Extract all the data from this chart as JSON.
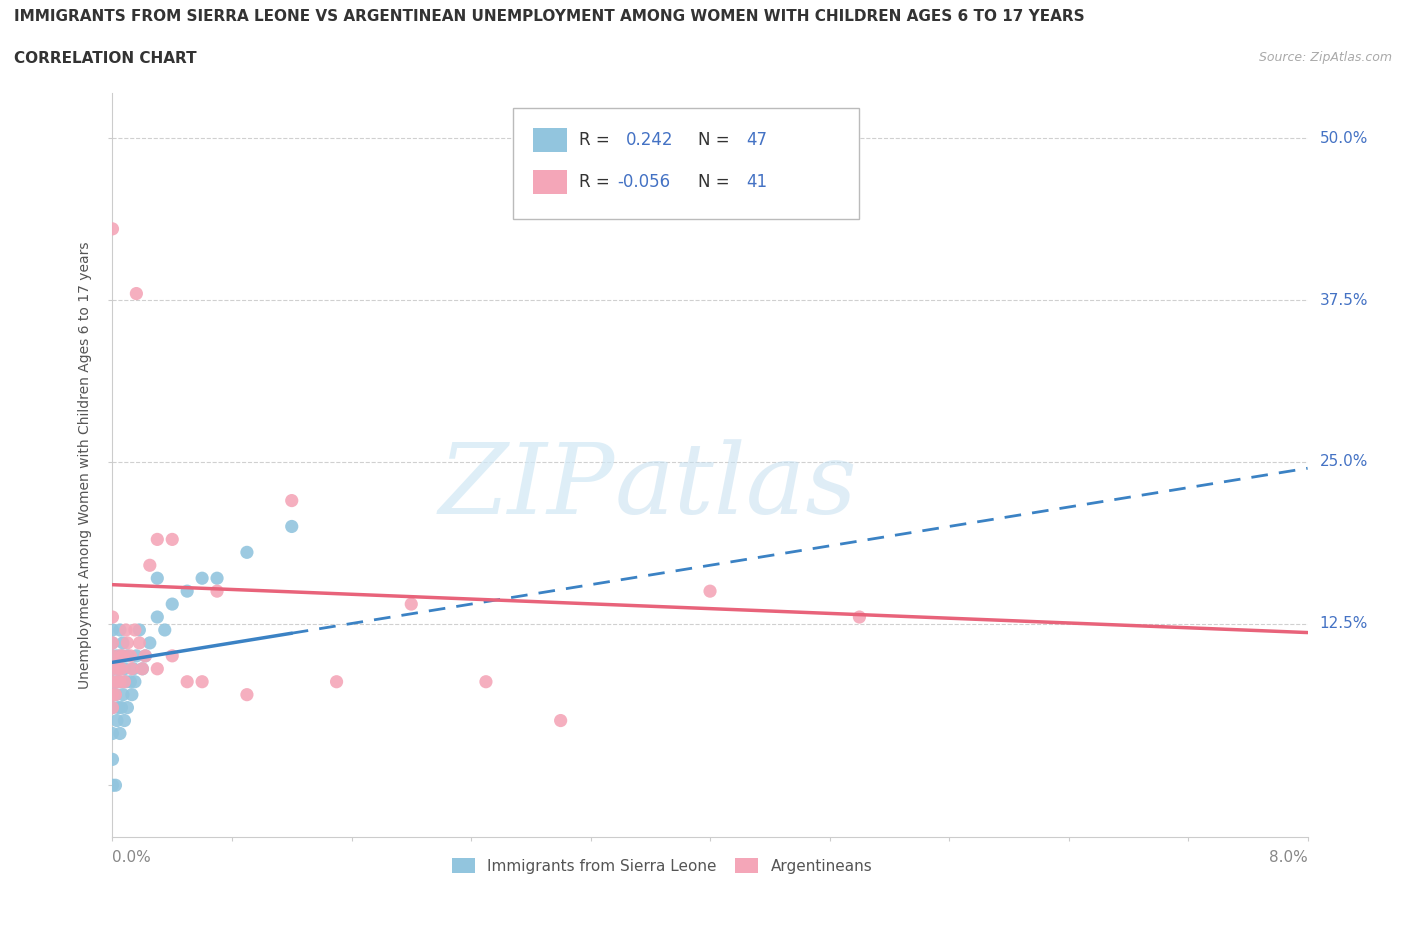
{
  "title": "IMMIGRANTS FROM SIERRA LEONE VS ARGENTINEAN UNEMPLOYMENT AMONG WOMEN WITH CHILDREN AGES 6 TO 17 YEARS",
  "subtitle": "CORRELATION CHART",
  "source": "Source: ZipAtlas.com",
  "ylabel": "Unemployment Among Women with Children Ages 6 to 17 years",
  "y_ticks": [
    0.0,
    0.125,
    0.25,
    0.375,
    0.5
  ],
  "y_tick_labels": [
    "",
    "12.5%",
    "25.0%",
    "37.5%",
    "50.0%"
  ],
  "x_min": 0.0,
  "x_max": 0.08,
  "y_min": -0.04,
  "y_max": 0.535,
  "blue_color": "#92C5DE",
  "pink_color": "#F4A6B8",
  "blue_line_color": "#3B82C4",
  "pink_line_color": "#E8637A",
  "sl_x": [
    0.0,
    0.0,
    0.0,
    0.0,
    0.0,
    0.0,
    0.0,
    0.0,
    0.0,
    0.0,
    0.0002,
    0.0002,
    0.0003,
    0.0003,
    0.0003,
    0.0004,
    0.0004,
    0.0005,
    0.0005,
    0.0005,
    0.0006,
    0.0006,
    0.0007,
    0.0007,
    0.0008,
    0.0008,
    0.0009,
    0.001,
    0.001,
    0.0012,
    0.0013,
    0.0014,
    0.0015,
    0.0016,
    0.0018,
    0.002,
    0.0022,
    0.0025,
    0.003,
    0.003,
    0.0035,
    0.004,
    0.005,
    0.006,
    0.007,
    0.009,
    0.012
  ],
  "sl_y": [
    0.0,
    0.02,
    0.04,
    0.06,
    0.07,
    0.08,
    0.09,
    0.1,
    0.11,
    0.12,
    0.0,
    0.07,
    0.05,
    0.08,
    0.1,
    0.06,
    0.09,
    0.04,
    0.08,
    0.12,
    0.06,
    0.1,
    0.07,
    0.11,
    0.05,
    0.09,
    0.08,
    0.06,
    0.1,
    0.08,
    0.07,
    0.09,
    0.08,
    0.1,
    0.12,
    0.09,
    0.1,
    0.11,
    0.13,
    0.16,
    0.12,
    0.14,
    0.15,
    0.16,
    0.16,
    0.18,
    0.2
  ],
  "arg_x": [
    0.0,
    0.0,
    0.0,
    0.0,
    0.0,
    0.0,
    0.0,
    0.0,
    0.0002,
    0.0003,
    0.0004,
    0.0005,
    0.0005,
    0.0006,
    0.0007,
    0.0008,
    0.0009,
    0.001,
    0.0012,
    0.0013,
    0.0015,
    0.0016,
    0.0018,
    0.002,
    0.0022,
    0.0025,
    0.003,
    0.003,
    0.004,
    0.004,
    0.005,
    0.006,
    0.007,
    0.009,
    0.012,
    0.015,
    0.02,
    0.025,
    0.03,
    0.04,
    0.05
  ],
  "arg_y": [
    0.06,
    0.07,
    0.08,
    0.09,
    0.1,
    0.11,
    0.13,
    0.43,
    0.07,
    0.08,
    0.09,
    0.08,
    0.1,
    0.09,
    0.1,
    0.08,
    0.12,
    0.11,
    0.1,
    0.09,
    0.12,
    0.38,
    0.11,
    0.09,
    0.1,
    0.17,
    0.09,
    0.19,
    0.19,
    0.1,
    0.08,
    0.08,
    0.15,
    0.07,
    0.22,
    0.08,
    0.14,
    0.08,
    0.05,
    0.15,
    0.13
  ],
  "sl_line_x0": 0.0,
  "sl_line_x1": 0.08,
  "sl_line_y0": 0.095,
  "sl_line_y1": 0.245,
  "arg_line_x0": 0.0,
  "arg_line_x1": 0.08,
  "arg_line_y0": 0.155,
  "arg_line_y1": 0.118
}
